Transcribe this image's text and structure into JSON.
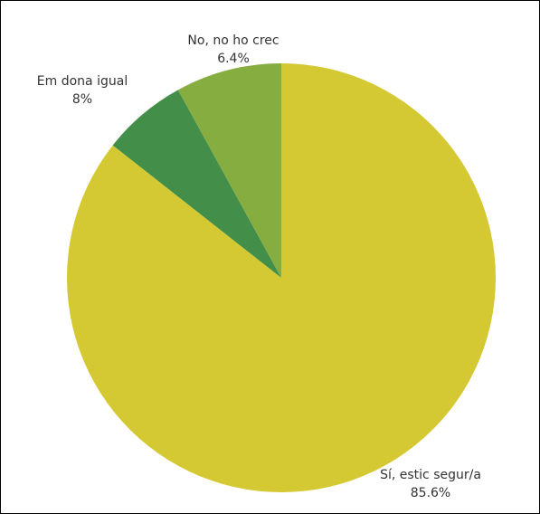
{
  "chart_data": {
    "type": "pie",
    "title": "",
    "legend": "none",
    "categories": [
      "Sí, estic segur/a",
      "No, no ho crec",
      "Em dona igual"
    ],
    "values": [
      85.6,
      6.4,
      8
    ],
    "value_labels": [
      "85.6%",
      "6.4%",
      "8%"
    ],
    "colors": [
      "#d4c933",
      "#438f49",
      "#86ad40"
    ],
    "start_angle_deg": 0,
    "direction": "clockwise"
  }
}
